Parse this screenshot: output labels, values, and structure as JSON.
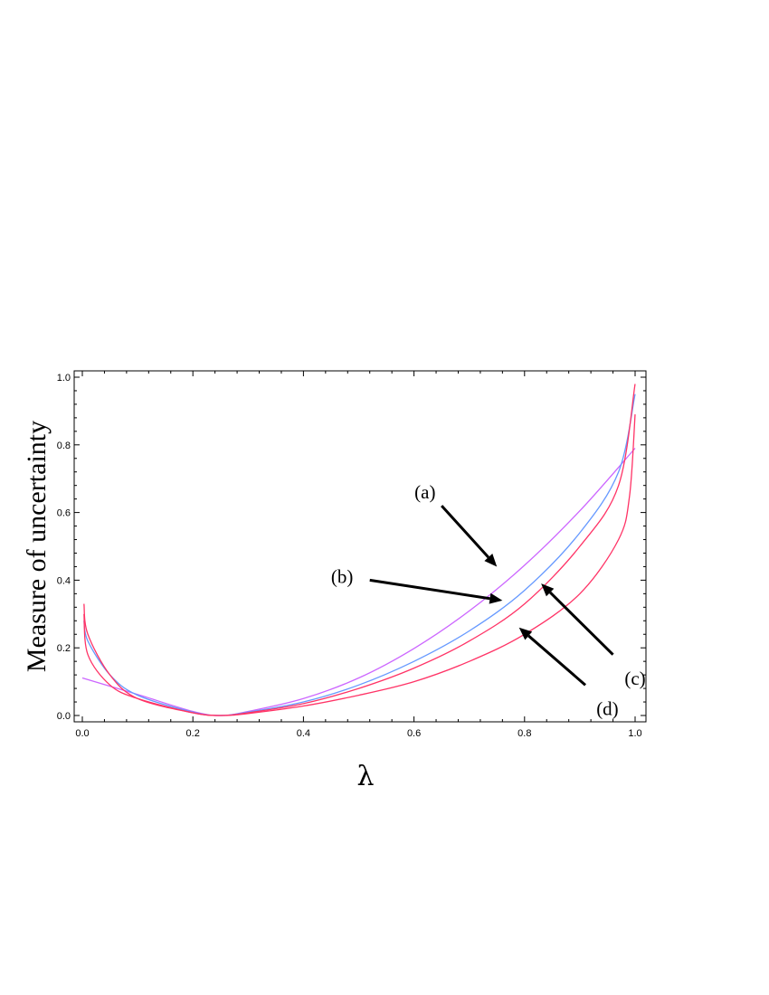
{
  "chart_data": {
    "type": "line",
    "title": "",
    "xlabel": "λ",
    "ylabel": "Measure of uncertainty",
    "xlim": [
      0,
      1
    ],
    "ylim": [
      0,
      1
    ],
    "x_ticks": [
      "0.0",
      "0.2",
      "0.4",
      "0.6",
      "0.8",
      "1.0"
    ],
    "y_ticks": [
      "0.0",
      "0.2",
      "0.4",
      "0.6",
      "0.8",
      "1.0"
    ],
    "grid": false,
    "legend": "none",
    "series": [
      {
        "color": "#cc66ff",
        "x": [
          0,
          0.1,
          0.2,
          0.25,
          0.3,
          0.4,
          0.5,
          0.6,
          0.7,
          0.8,
          0.9,
          1.0
        ],
        "y": [
          0.111,
          0.062,
          0.012,
          0.0,
          0.012,
          0.05,
          0.111,
          0.198,
          0.309,
          0.444,
          0.605,
          0.79
        ]
      },
      {
        "color": "#6699ff",
        "x": [
          0.003,
          0.01,
          0.05,
          0.1,
          0.2,
          0.25,
          0.3,
          0.4,
          0.5,
          0.6,
          0.7,
          0.8,
          0.9,
          0.97,
          1.0
        ],
        "y": [
          0.28,
          0.22,
          0.12,
          0.06,
          0.01,
          0.0,
          0.01,
          0.04,
          0.09,
          0.16,
          0.25,
          0.37,
          0.54,
          0.72,
          0.95
        ]
      },
      {
        "color": "#ff3366",
        "x": [
          0.003,
          0.01,
          0.05,
          0.1,
          0.2,
          0.25,
          0.3,
          0.4,
          0.5,
          0.6,
          0.7,
          0.8,
          0.9,
          0.97,
          1.0
        ],
        "y": [
          0.33,
          0.24,
          0.12,
          0.05,
          0.008,
          0.0,
          0.008,
          0.035,
          0.08,
          0.14,
          0.22,
          0.33,
          0.5,
          0.68,
          0.98
        ]
      },
      {
        "color": "#ff3366",
        "x": [
          0.003,
          0.01,
          0.05,
          0.1,
          0.2,
          0.25,
          0.3,
          0.4,
          0.5,
          0.6,
          0.7,
          0.8,
          0.9,
          0.97,
          0.99,
          1.0
        ],
        "y": [
          0.3,
          0.18,
          0.09,
          0.05,
          0.008,
          0.0,
          0.006,
          0.028,
          0.06,
          0.1,
          0.16,
          0.24,
          0.36,
          0.52,
          0.65,
          0.89
        ]
      }
    ],
    "annotations": [
      {
        "label": "(a)",
        "text_x": 0.62,
        "text_y": 0.66,
        "from": [
          0.65,
          0.62
        ],
        "to": [
          0.75,
          0.44
        ]
      },
      {
        "label": "(b)",
        "text_x": 0.47,
        "text_y": 0.41,
        "from": [
          0.52,
          0.4
        ],
        "to": [
          0.76,
          0.34
        ]
      },
      {
        "label": "(c)",
        "text_x": 1.0,
        "text_y": 0.11,
        "from": [
          0.96,
          0.18
        ],
        "to": [
          0.83,
          0.39
        ]
      },
      {
        "label": "(d)",
        "text_x": 0.95,
        "text_y": 0.02,
        "from": [
          0.91,
          0.09
        ],
        "to": [
          0.79,
          0.26
        ]
      }
    ]
  }
}
